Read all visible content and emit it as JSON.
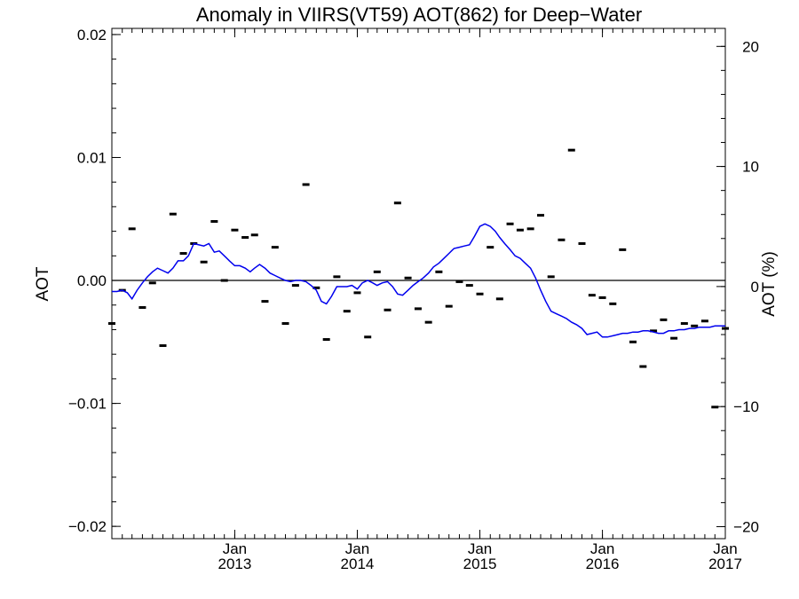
{
  "chart_data": {
    "type": "line",
    "title": "Anomaly in VIIRS(VT59) AOT(862) for Deep−Water",
    "ylabel": "AOT",
    "y2label": "AOT (%)",
    "ylim": [
      -0.021,
      0.0205
    ],
    "y2lim": [
      -21.0,
      21.5
    ],
    "y_ticks": [
      -0.02,
      -0.01,
      0.0,
      0.01,
      0.02
    ],
    "y_tick_labels": [
      "−0.02",
      "−0.01",
      "0.00",
      "0.01",
      "0.02"
    ],
    "y2_ticks": [
      -20,
      -10,
      0,
      10,
      20
    ],
    "y2_tick_labels": [
      "−20",
      "−10",
      "0",
      "10",
      "20"
    ],
    "xlim": [
      "2012-01-01",
      "2017-01-01"
    ],
    "x_ticks": [
      "2013-01-01",
      "2014-01-01",
      "2015-01-01",
      "2016-01-01",
      "2017-01-01"
    ],
    "x_tick_labels": [
      {
        "month": "Jan",
        "year": "2013"
      },
      {
        "month": "Jan",
        "year": "2014"
      },
      {
        "month": "Jan",
        "year": "2015"
      },
      {
        "month": "Jan",
        "year": "2016"
      },
      {
        "month": "Jan",
        "year": "2017"
      }
    ],
    "grid": false,
    "legend": "none",
    "zero_line": 0,
    "colors": {
      "line": "#0000ee",
      "points": "#000000",
      "axes": "#000000"
    },
    "series": [
      {
        "kind": "line",
        "x": [
          "2012-01-01",
          "2012-01-16",
          "2012-02-01",
          "2012-02-16",
          "2012-03-01",
          "2012-03-16",
          "2012-04-01",
          "2012-04-16",
          "2012-05-01",
          "2012-05-16",
          "2012-06-01",
          "2012-06-16",
          "2012-07-01",
          "2012-07-16",
          "2012-08-01",
          "2012-08-16",
          "2012-09-01",
          "2012-09-16",
          "2012-10-01",
          "2012-10-16",
          "2012-11-01",
          "2012-11-16",
          "2012-12-01",
          "2012-12-16",
          "2013-01-01",
          "2013-01-16",
          "2013-02-01",
          "2013-02-16",
          "2013-03-01",
          "2013-03-16",
          "2013-04-01",
          "2013-04-16",
          "2013-05-01",
          "2013-05-16",
          "2013-06-01",
          "2013-06-16",
          "2013-07-01",
          "2013-07-16",
          "2013-08-01",
          "2013-08-16",
          "2013-09-01",
          "2013-09-16",
          "2013-10-01",
          "2013-10-16",
          "2013-11-01",
          "2013-11-16",
          "2013-12-01",
          "2013-12-16",
          "2014-01-01",
          "2014-01-16",
          "2014-02-01",
          "2014-02-16",
          "2014-03-01",
          "2014-03-16",
          "2014-04-01",
          "2014-04-16",
          "2014-05-01",
          "2014-05-16",
          "2014-06-01",
          "2014-06-16",
          "2014-07-01",
          "2014-07-16",
          "2014-08-01",
          "2014-08-16",
          "2014-09-01",
          "2014-09-16",
          "2014-10-01",
          "2014-10-16",
          "2014-11-01",
          "2014-11-16",
          "2014-12-01",
          "2014-12-16",
          "2015-01-01",
          "2015-01-16",
          "2015-02-01",
          "2015-02-16",
          "2015-03-01",
          "2015-03-16",
          "2015-04-01",
          "2015-04-16",
          "2015-05-01",
          "2015-05-16",
          "2015-06-01",
          "2015-06-16",
          "2015-07-01",
          "2015-07-16",
          "2015-08-01",
          "2015-08-16",
          "2015-09-01",
          "2015-09-16",
          "2015-10-01",
          "2015-10-16",
          "2015-11-01",
          "2015-11-16",
          "2015-12-01",
          "2015-12-16",
          "2016-01-01",
          "2016-01-16",
          "2016-02-01",
          "2016-02-16",
          "2016-03-01",
          "2016-03-16",
          "2016-04-01",
          "2016-04-16",
          "2016-05-01",
          "2016-05-16",
          "2016-06-01",
          "2016-06-16",
          "2016-07-01",
          "2016-07-16",
          "2016-08-01",
          "2016-08-16",
          "2016-09-01",
          "2016-09-16",
          "2016-10-01",
          "2016-10-16",
          "2016-11-01",
          "2016-11-16",
          "2016-12-01",
          "2016-12-16",
          "2017-01-01"
        ],
        "y": [
          -0.0009,
          -0.0009,
          -0.0008,
          -0.001,
          -0.0015,
          -0.0008,
          -0.0002,
          0.0003,
          0.0007,
          0.001,
          0.0008,
          0.0006,
          0.001,
          0.0016,
          0.0016,
          0.002,
          0.003,
          0.0029,
          0.0028,
          0.003,
          0.0023,
          0.0024,
          0.002,
          0.0016,
          0.0012,
          0.0012,
          0.001,
          0.0007,
          0.001,
          0.0013,
          0.001,
          0.0006,
          0.0004,
          0.0002,
          0.0,
          -0.0001,
          0.0,
          0.0,
          -0.0001,
          -0.0004,
          -0.0008,
          -0.0017,
          -0.0019,
          -0.0013,
          -0.0005,
          -0.0005,
          -0.0005,
          -0.0004,
          -0.0007,
          -0.0002,
          0.0,
          -0.0002,
          -0.0004,
          -0.0002,
          -0.0001,
          -0.0005,
          -0.0011,
          -0.0012,
          -0.0008,
          -0.0004,
          -0.0001,
          0.0002,
          0.0006,
          0.0011,
          0.0014,
          0.0018,
          0.0022,
          0.0026,
          0.0027,
          0.0028,
          0.0029,
          0.0036,
          0.0044,
          0.0046,
          0.0044,
          0.004,
          0.0035,
          0.003,
          0.0025,
          0.002,
          0.0018,
          0.0014,
          0.001,
          0.0002,
          -0.0008,
          -0.0017,
          -0.0025,
          -0.0027,
          -0.0029,
          -0.0031,
          -0.0034,
          -0.0036,
          -0.0039,
          -0.0044,
          -0.0043,
          -0.0042,
          -0.0046,
          -0.0046,
          -0.0045,
          -0.0044,
          -0.0043,
          -0.0043,
          -0.0042,
          -0.0042,
          -0.0041,
          -0.0041,
          -0.0042,
          -0.0043,
          -0.0043,
          -0.0041,
          -0.0041,
          -0.004,
          -0.004,
          -0.0039,
          -0.0039,
          -0.0038,
          -0.0038,
          -0.0038,
          -0.0037,
          -0.0037,
          -0.0037
        ]
      },
      {
        "kind": "points",
        "x": [
          "2012-01-01",
          "2012-02-01",
          "2012-03-01",
          "2012-04-01",
          "2012-05-01",
          "2012-06-01",
          "2012-07-01",
          "2012-08-01",
          "2012-09-01",
          "2012-10-01",
          "2012-11-01",
          "2012-12-01",
          "2013-01-01",
          "2013-02-01",
          "2013-03-01",
          "2013-04-01",
          "2013-05-01",
          "2013-06-01",
          "2013-07-01",
          "2013-08-01",
          "2013-09-01",
          "2013-10-01",
          "2013-11-01",
          "2013-12-01",
          "2014-01-01",
          "2014-02-01",
          "2014-03-01",
          "2014-04-01",
          "2014-05-01",
          "2014-06-01",
          "2014-07-01",
          "2014-08-01",
          "2014-09-01",
          "2014-10-01",
          "2014-11-01",
          "2014-12-01",
          "2015-01-01",
          "2015-02-01",
          "2015-03-01",
          "2015-04-01",
          "2015-05-01",
          "2015-06-01",
          "2015-07-01",
          "2015-08-01",
          "2015-09-01",
          "2015-10-01",
          "2015-11-01",
          "2015-12-01",
          "2016-01-01",
          "2016-02-01",
          "2016-03-01",
          "2016-04-01",
          "2016-05-01",
          "2016-06-01",
          "2016-07-01",
          "2016-08-01",
          "2016-09-01",
          "2016-10-01",
          "2016-11-01",
          "2016-12-01",
          "2017-01-01"
        ],
        "y": [
          -0.0035,
          -0.0008,
          0.0042,
          -0.0022,
          -0.0002,
          -0.0053,
          0.0054,
          0.0022,
          0.003,
          0.0015,
          0.0048,
          0.0,
          0.0041,
          0.0035,
          0.0037,
          -0.0017,
          0.0027,
          -0.0035,
          -0.0004,
          0.0078,
          -0.0006,
          -0.0048,
          0.0003,
          -0.0025,
          -0.001,
          -0.0046,
          0.0007,
          -0.0024,
          0.0063,
          0.0002,
          -0.0023,
          -0.0034,
          0.0007,
          -0.0021,
          -0.0001,
          -0.0004,
          -0.0011,
          0.0027,
          -0.0015,
          0.0046,
          0.0041,
          0.0042,
          0.0053,
          0.0003,
          0.0033,
          0.0106,
          0.003,
          -0.0012,
          -0.0014,
          -0.0019,
          0.0025,
          -0.005,
          -0.007,
          -0.0041,
          -0.0032,
          -0.0047,
          -0.0035,
          -0.0037,
          -0.0033,
          -0.0103,
          -0.0039
        ]
      }
    ]
  }
}
